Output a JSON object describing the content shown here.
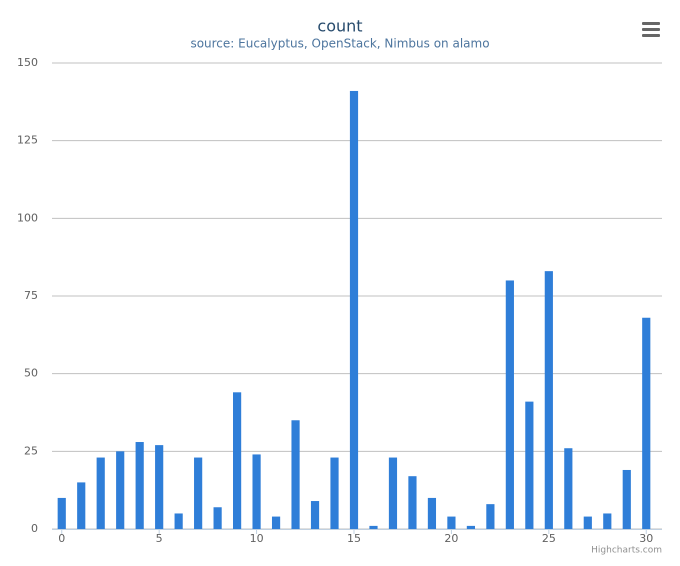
{
  "chart_data": {
    "type": "bar",
    "title": "count",
    "subtitle": "source: Eucalyptus, OpenStack, Nimbus on alamo",
    "x": [
      0,
      1,
      2,
      3,
      4,
      5,
      6,
      7,
      8,
      9,
      10,
      11,
      12,
      13,
      14,
      15,
      16,
      17,
      18,
      19,
      20,
      21,
      22,
      23,
      24,
      25,
      26,
      27,
      28,
      29,
      30
    ],
    "values": [
      10,
      15,
      23,
      25,
      28,
      27,
      5,
      23,
      7,
      44,
      24,
      4,
      35,
      9,
      23,
      141,
      1,
      23,
      17,
      10,
      4,
      1,
      8,
      80,
      41,
      83,
      26,
      4,
      5,
      19,
      68
    ],
    "color": "#2f7ed8",
    "xlim": [
      -0.5,
      30.5
    ],
    "xticks": [
      0,
      5,
      10,
      15,
      20,
      25,
      30
    ],
    "ylim": [
      0,
      150
    ],
    "yticks": [
      0,
      25,
      50,
      75,
      100,
      125,
      150
    ],
    "grid": true,
    "credits": "Highcharts.com"
  }
}
